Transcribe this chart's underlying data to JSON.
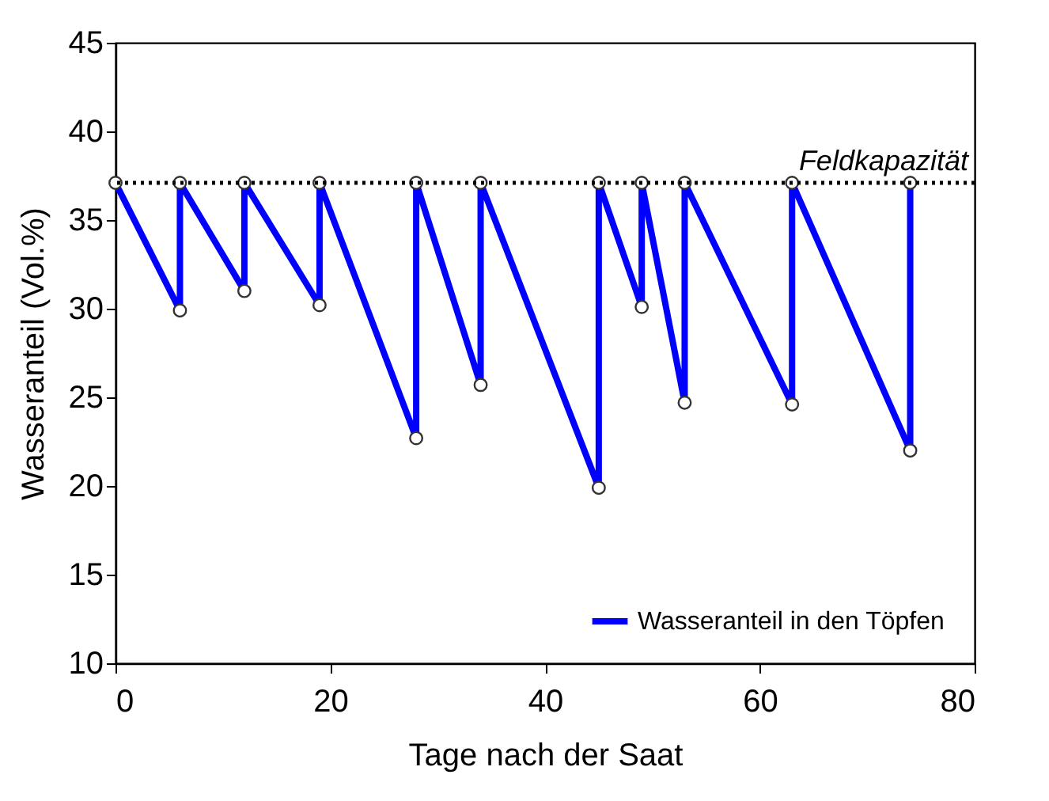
{
  "chart_data": {
    "type": "line",
    "xlabel": "Tage nach der Saat",
    "ylabel": "Wasseranteil (Vol.%)",
    "x": [
      0,
      6,
      6,
      12,
      12,
      19,
      19,
      28,
      28,
      34,
      34,
      45,
      45,
      49,
      49,
      53,
      53,
      63,
      63,
      74,
      74
    ],
    "series": [
      {
        "name": "Wasseranteil in den Töpfen",
        "color": "#0000ff",
        "values": [
          37.1,
          29.9,
          37.1,
          31.0,
          37.1,
          30.2,
          37.1,
          22.7,
          37.1,
          25.7,
          37.1,
          19.9,
          37.1,
          30.1,
          37.1,
          24.7,
          37.1,
          24.6,
          37.1,
          22.0,
          37.1
        ]
      }
    ],
    "xlim": [
      0,
      80
    ],
    "xticks": [
      0,
      20,
      40,
      60,
      80
    ],
    "ylim": [
      10,
      45
    ],
    "yticks": [
      10,
      15,
      20,
      25,
      30,
      35,
      40,
      45
    ],
    "ref_lines": [
      {
        "axis": "y",
        "value": 37.1,
        "label": "Feldkapazität",
        "color": "#000000",
        "line_style": "dotted"
      }
    ],
    "marker": "circle",
    "line_style": "solid",
    "grid": false,
    "legend": "bottom right"
  }
}
